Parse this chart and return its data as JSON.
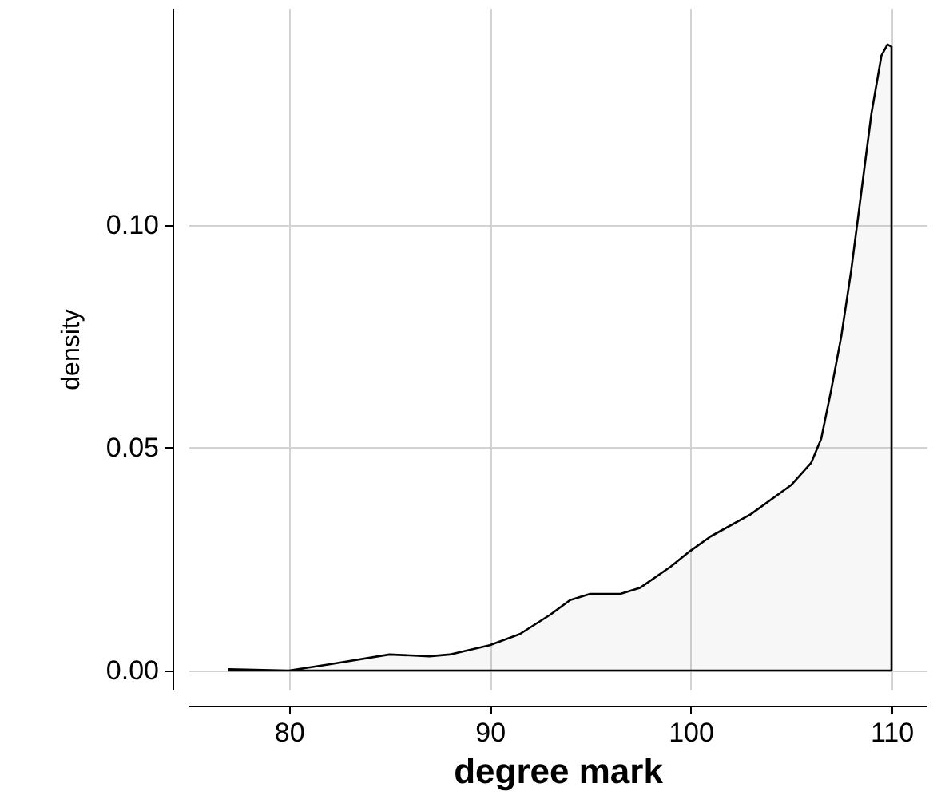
{
  "chart_data": {
    "type": "area",
    "xlabel": "degree mark",
    "ylabel": "density",
    "x": [
      77,
      80,
      82,
      85,
      87,
      88,
      90,
      91.5,
      93,
      94,
      95,
      96.5,
      97.5,
      99,
      100,
      101,
      103,
      105,
      106,
      106.5,
      107,
      107.5,
      108,
      108.5,
      109,
      109.5,
      109.8,
      110
    ],
    "series": [
      {
        "color": "#000000",
        "values": [
          0.0003,
          0.0,
          0.0014,
          0.0036,
          0.0032,
          0.0036,
          0.0057,
          0.0082,
          0.0125,
          0.0158,
          0.0172,
          0.0172,
          0.0186,
          0.0233,
          0.0269,
          0.0301,
          0.0351,
          0.0416,
          0.0466,
          0.052,
          0.063,
          0.075,
          0.09,
          0.1075,
          0.125,
          0.138,
          0.1405,
          0.14
        ]
      }
    ],
    "xlim": [
      75,
      111.75
    ],
    "xticks": [
      80,
      90,
      100,
      110
    ],
    "ylim": [
      -0.0043,
      0.1487
    ],
    "yticks": [
      {
        "value": 0,
        "label": "0.00"
      },
      {
        "value": 0.05,
        "label": "0.05"
      },
      {
        "value": 0.1,
        "label": "0.10"
      }
    ],
    "grid": true
  }
}
